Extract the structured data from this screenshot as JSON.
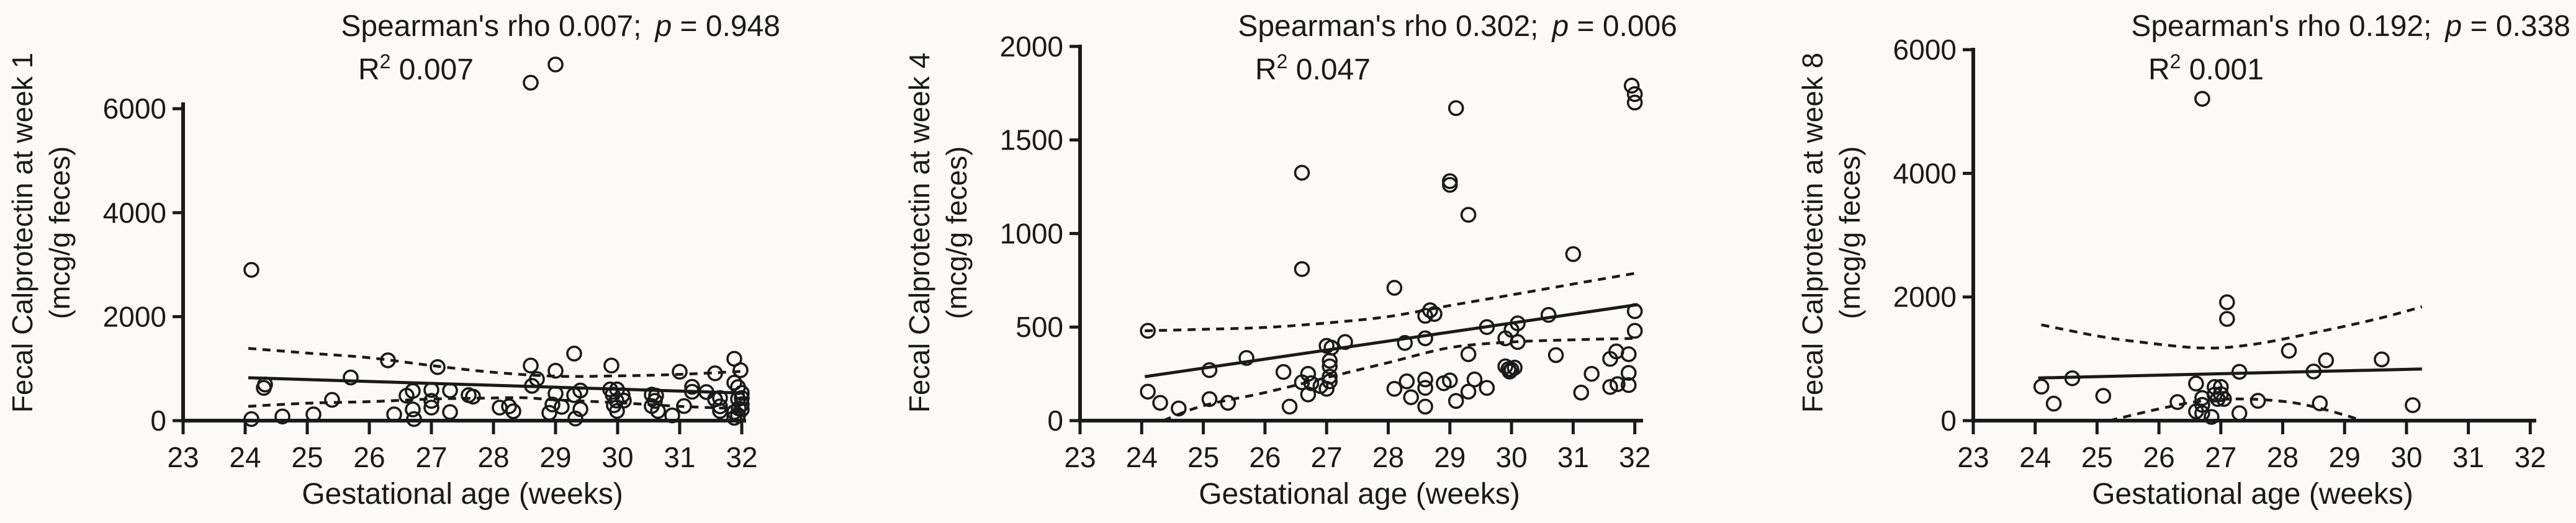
{
  "figure": {
    "background": "#fbfaf8",
    "ink": "#1a1a1a",
    "marker": "open-circle"
  },
  "chart_data": [
    {
      "type": "scatter",
      "title": "Spearman's rho 0.007;  p = 0.948",
      "annotation": {
        "rho_text": "Spearman's rho 0.007;",
        "p_italic": "p",
        "p_rest": " = 0.948",
        "r2_base": "R",
        "r2_exp": "2",
        "r2_value": "0.007"
      },
      "xlabel": "Gestational age (weeks)",
      "ylabel_lines": [
        "Fecal Calprotectin at week 1",
        "(mcg/g feces)"
      ],
      "x_ticks": [
        23,
        24,
        25,
        26,
        27,
        28,
        29,
        30,
        31,
        32
      ],
      "y_ticks": [
        0,
        2000,
        4000,
        6000
      ],
      "xlim": [
        23,
        32
      ],
      "ylim": [
        0,
        7000
      ],
      "grid": false,
      "legend": "none",
      "points": [
        [
          24.1,
          2900
        ],
        [
          28.6,
          6500
        ],
        [
          29.0,
          6850
        ],
        [
          24.1,
          30
        ],
        [
          24.3,
          630
        ],
        [
          24.32,
          695
        ],
        [
          24.6,
          80
        ],
        [
          25.1,
          120
        ],
        [
          25.4,
          400
        ],
        [
          25.7,
          830
        ],
        [
          26.3,
          1160
        ],
        [
          26.4,
          120
        ],
        [
          26.6,
          480
        ],
        [
          26.7,
          570
        ],
        [
          26.7,
          215
        ],
        [
          26.72,
          30
        ],
        [
          27.0,
          590
        ],
        [
          27.0,
          380
        ],
        [
          27.0,
          250
        ],
        [
          27.1,
          1030
        ],
        [
          27.3,
          580
        ],
        [
          27.3,
          165
        ],
        [
          27.6,
          490
        ],
        [
          27.67,
          462
        ],
        [
          28.1,
          250
        ],
        [
          28.25,
          275
        ],
        [
          28.32,
          180
        ],
        [
          28.6,
          1060
        ],
        [
          28.62,
          670
        ],
        [
          28.7,
          800
        ],
        [
          28.9,
          150
        ],
        [
          28.95,
          310
        ],
        [
          29.0,
          960
        ],
        [
          29.0,
          520
        ],
        [
          29.1,
          265
        ],
        [
          29.3,
          1290
        ],
        [
          29.3,
          490
        ],
        [
          29.32,
          40
        ],
        [
          29.4,
          580
        ],
        [
          29.4,
          220
        ],
        [
          29.9,
          1060
        ],
        [
          29.88,
          600
        ],
        [
          29.92,
          500
        ],
        [
          29.99,
          600
        ],
        [
          29.98,
          385
        ],
        [
          29.94,
          295
        ],
        [
          29.99,
          185
        ],
        [
          30.08,
          490
        ],
        [
          30.1,
          385
        ],
        [
          30.55,
          500
        ],
        [
          30.62,
          480
        ],
        [
          30.6,
          380
        ],
        [
          30.55,
          280
        ],
        [
          30.65,
          185
        ],
        [
          30.88,
          100
        ],
        [
          31.0,
          940
        ],
        [
          31.07,
          280
        ],
        [
          31.2,
          650
        ],
        [
          31.2,
          555
        ],
        [
          31.43,
          550
        ],
        [
          31.57,
          910
        ],
        [
          31.57,
          410
        ],
        [
          31.65,
          435
        ],
        [
          31.65,
          275
        ],
        [
          31.65,
          185
        ],
        [
          31.88,
          1190
        ],
        [
          31.88,
          730
        ],
        [
          31.94,
          645
        ],
        [
          31.98,
          970
        ],
        [
          32.0,
          535
        ],
        [
          32.0,
          435
        ],
        [
          31.94,
          415
        ],
        [
          32.0,
          315
        ],
        [
          31.95,
          235
        ],
        [
          32.0,
          215
        ],
        [
          31.88,
          165
        ],
        [
          31.94,
          105
        ],
        [
          31.88,
          55
        ]
      ],
      "trend": {
        "solid": [
          [
            24.05,
            825
          ],
          [
            32.05,
            530
          ]
        ],
        "upper_ci": [
          [
            24.05,
            1390
          ],
          [
            25,
            1300
          ],
          [
            26,
            1210
          ],
          [
            27,
            1060
          ],
          [
            28,
            930
          ],
          [
            29,
            855
          ],
          [
            30,
            860
          ],
          [
            31,
            890
          ],
          [
            32.05,
            950
          ]
        ],
        "lower_ci": [
          [
            24.05,
            275
          ],
          [
            25,
            335
          ],
          [
            26,
            365
          ],
          [
            27,
            415
          ],
          [
            28,
            435
          ],
          [
            28.5,
            440
          ],
          [
            29,
            400
          ],
          [
            30,
            345
          ],
          [
            31,
            275
          ],
          [
            32.05,
            225
          ]
        ]
      }
    },
    {
      "type": "scatter",
      "title": "Spearman's rho 0.302;  p = 0.006",
      "annotation": {
        "rho_text": "Spearman's rho 0.302;",
        "p_italic": "p",
        "p_rest": " = 0.006",
        "r2_base": "R",
        "r2_exp": "2",
        "r2_value": "0.047"
      },
      "xlabel": "Gestational age (weeks)",
      "ylabel_lines": [
        "Fecal Calprotectin at week 4",
        "(mcg/g feces)"
      ],
      "x_ticks": [
        23,
        24,
        25,
        26,
        27,
        28,
        29,
        30,
        31,
        32
      ],
      "y_ticks": [
        0,
        500,
        1000,
        1500,
        2000
      ],
      "xlim": [
        23,
        32
      ],
      "ylim": [
        0,
        2000
      ],
      "grid": false,
      "legend": "none",
      "points": [
        [
          24.1,
          480
        ],
        [
          24.1,
          155
        ],
        [
          24.3,
          95
        ],
        [
          24.6,
          65
        ],
        [
          25.1,
          270
        ],
        [
          25.1,
          115
        ],
        [
          25.4,
          95
        ],
        [
          25.7,
          335
        ],
        [
          26.3,
          260
        ],
        [
          26.4,
          75
        ],
        [
          26.6,
          1325
        ],
        [
          26.6,
          810
        ],
        [
          26.6,
          205
        ],
        [
          26.7,
          250
        ],
        [
          26.75,
          200
        ],
        [
          26.7,
          140
        ],
        [
          26.9,
          185
        ],
        [
          27.0,
          400
        ],
        [
          27.08,
          390
        ],
        [
          27.3,
          420
        ],
        [
          27.05,
          320
        ],
        [
          27.05,
          290
        ],
        [
          27.05,
          235
        ],
        [
          27.05,
          210
        ],
        [
          27.0,
          170
        ],
        [
          28.1,
          710
        ],
        [
          28.1,
          170
        ],
        [
          28.27,
          415
        ],
        [
          28.3,
          210
        ],
        [
          28.37,
          125
        ],
        [
          28.6,
          560
        ],
        [
          28.68,
          590
        ],
        [
          28.75,
          570
        ],
        [
          28.6,
          440
        ],
        [
          28.6,
          220
        ],
        [
          28.6,
          175
        ],
        [
          28.6,
          75
        ],
        [
          28.9,
          200
        ],
        [
          29.0,
          1280
        ],
        [
          29.0,
          1260
        ],
        [
          29.1,
          1670
        ],
        [
          29.0,
          215
        ],
        [
          29.1,
          105
        ],
        [
          29.3,
          1100
        ],
        [
          29.3,
          355
        ],
        [
          29.3,
          155
        ],
        [
          29.4,
          220
        ],
        [
          29.6,
          500
        ],
        [
          29.6,
          175
        ],
        [
          29.9,
          440
        ],
        [
          29.9,
          290
        ],
        [
          29.95,
          275
        ],
        [
          30.0,
          272
        ],
        [
          30.05,
          283
        ],
        [
          29.97,
          262
        ],
        [
          30.0,
          485
        ],
        [
          30.1,
          520
        ],
        [
          30.1,
          420
        ],
        [
          30.6,
          565
        ],
        [
          30.72,
          350
        ],
        [
          31.0,
          890
        ],
        [
          31.13,
          150
        ],
        [
          31.3,
          250
        ],
        [
          31.6,
          330
        ],
        [
          31.6,
          180
        ],
        [
          31.7,
          370
        ],
        [
          31.72,
          195
        ],
        [
          31.9,
          355
        ],
        [
          31.9,
          255
        ],
        [
          31.9,
          190
        ],
        [
          31.95,
          1790
        ],
        [
          32.0,
          1745
        ],
        [
          32.0,
          1700
        ],
        [
          32.0,
          585
        ],
        [
          32.0,
          480
        ]
      ],
      "trend": {
        "solid": [
          [
            24.05,
            235
          ],
          [
            32.05,
            620
          ]
        ],
        "upper_ci": [
          [
            24.05,
            480
          ],
          [
            25,
            488
          ],
          [
            26,
            498
          ],
          [
            27,
            522
          ],
          [
            28,
            556
          ],
          [
            29,
            615
          ],
          [
            30,
            672
          ],
          [
            31,
            730
          ],
          [
            32.05,
            790
          ]
        ],
        "lower_ci": [
          [
            24.35,
            0
          ],
          [
            25,
            80
          ],
          [
            26,
            150
          ],
          [
            27,
            230
          ],
          [
            28,
            310
          ],
          [
            29,
            390
          ],
          [
            30,
            420
          ],
          [
            31,
            432
          ],
          [
            32.05,
            440
          ]
        ]
      }
    },
    {
      "type": "scatter",
      "title": "Spearman's rho 0.192;  p = 0.338",
      "annotation": {
        "rho_text": "Spearman's rho 0.192;",
        "p_italic": "p",
        "p_rest": " = 0.338",
        "r2_base": "R",
        "r2_exp": "2",
        "r2_value": "0.001"
      },
      "xlabel": "Gestational age (weeks)",
      "ylabel_lines": [
        "Fecal Calprotectin at week 8",
        "(mcg/g feces)"
      ],
      "x_ticks": [
        23,
        24,
        25,
        26,
        27,
        28,
        29,
        30,
        31,
        32
      ],
      "y_ticks": [
        0,
        2000,
        4000,
        6000
      ],
      "xlim": [
        23,
        32
      ],
      "ylim": [
        0,
        6000
      ],
      "grid": false,
      "legend": "none",
      "points": [
        [
          26.7,
          5205
        ],
        [
          27.1,
          1915
        ],
        [
          27.1,
          1645
        ],
        [
          28.1,
          1130
        ],
        [
          24.1,
          550
        ],
        [
          24.3,
          275
        ],
        [
          24.6,
          685
        ],
        [
          25.1,
          400
        ],
        [
          26.3,
          300
        ],
        [
          26.6,
          600
        ],
        [
          26.6,
          150
        ],
        [
          26.7,
          365
        ],
        [
          26.7,
          255
        ],
        [
          26.7,
          120
        ],
        [
          26.85,
          60
        ],
        [
          26.9,
          545
        ],
        [
          27.0,
          545
        ],
        [
          26.9,
          420
        ],
        [
          27.0,
          430
        ],
        [
          26.95,
          350
        ],
        [
          27.05,
          350
        ],
        [
          27.3,
          790
        ],
        [
          27.3,
          120
        ],
        [
          27.6,
          320
        ],
        [
          28.5,
          795
        ],
        [
          28.6,
          280
        ],
        [
          28.7,
          975
        ],
        [
          29.6,
          990
        ],
        [
          30.1,
          250
        ]
      ],
      "trend": {
        "solid": [
          [
            24.05,
            690
          ],
          [
            30.25,
            835
          ]
        ],
        "upper_ci": [
          [
            24.1,
            1550
          ],
          [
            25,
            1370
          ],
          [
            25.7,
            1270
          ],
          [
            26.7,
            1175
          ],
          [
            27.5,
            1230
          ],
          [
            28.5,
            1420
          ],
          [
            29.5,
            1640
          ],
          [
            30.25,
            1840
          ]
        ],
        "lower_ci": [
          [
            25.2,
            0
          ],
          [
            26,
            190
          ],
          [
            26.7,
            320
          ],
          [
            27.4,
            350
          ],
          [
            28.1,
            300
          ],
          [
            28.6,
            200
          ],
          [
            29.1,
            60
          ],
          [
            29.25,
            0
          ]
        ]
      }
    }
  ]
}
